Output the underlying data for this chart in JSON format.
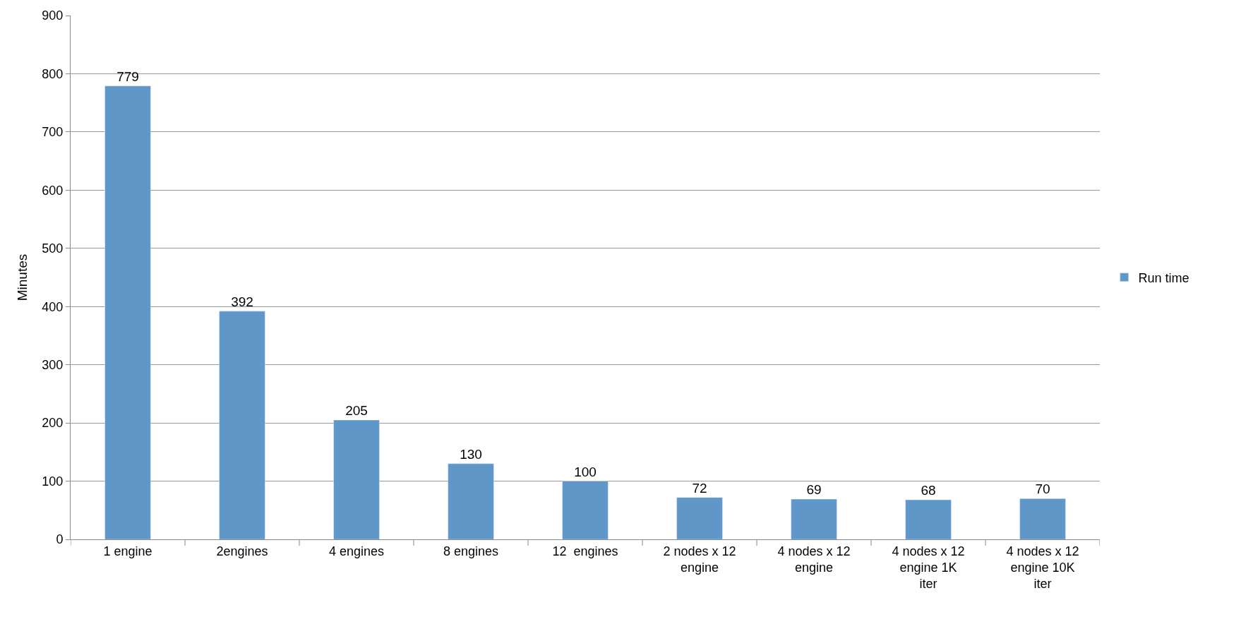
{
  "chart_data": {
    "type": "bar",
    "ylabel": "Minutes",
    "categories": [
      "1 engine",
      "2engines",
      "4 engines",
      "8 engines",
      "12  engines",
      "2 nodes x 12 engine",
      "4 nodes x 12 engine",
      "4 nodes x 12 engine 1K iter",
      "4 nodes x 12 engine 10K iter"
    ],
    "series": [
      {
        "name": "Run time",
        "color": "#6097c9",
        "values": [
          779,
          392,
          205,
          130,
          100,
          72,
          69,
          68,
          70
        ]
      }
    ],
    "ylim": [
      0,
      900
    ],
    "yticks": [
      0,
      100,
      200,
      300,
      400,
      500,
      600,
      700,
      800,
      900
    ],
    "grid": "y",
    "legend": "right",
    "data_labels": true
  }
}
